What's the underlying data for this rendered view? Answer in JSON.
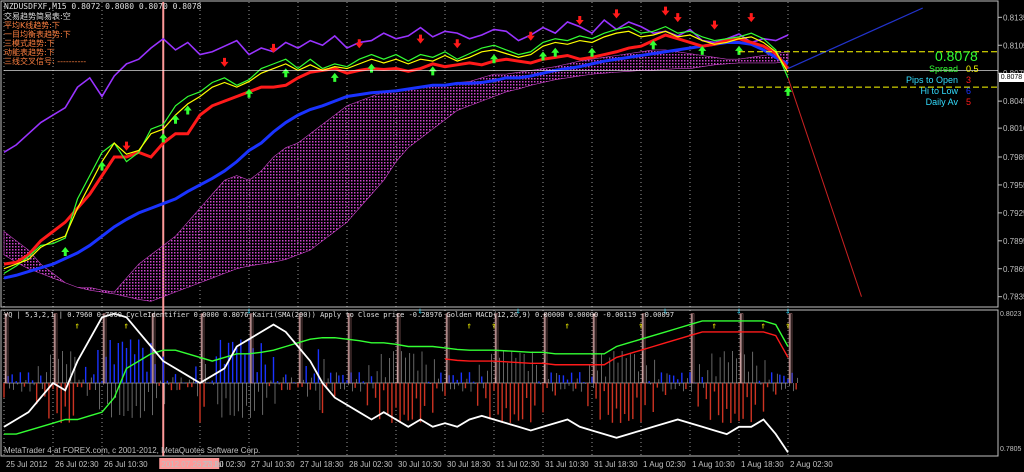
{
  "colors": {
    "background": "#000000",
    "axis": "#c0c0c0",
    "grid": "#ffffff",
    "purple": "#9933ff",
    "cloud": "#cc44cc",
    "blue": "#1a33ff",
    "red": "#ff1a1a",
    "green": "#33ff33",
    "yellow": "#ffff00",
    "cyan": "#33ddff",
    "orange": "#ff8040",
    "white": "#ffffff",
    "salmon": "#ff9999"
  },
  "main": {
    "header": "NZDUSDFXF,M15  0.8072 0.8080 0.8070 0.8078",
    "info_lines": [
      "交易趋势简易表:空",
      "平均K线趋势:下",
      "一目均衡表趋势:下",
      "三模式趋势:下",
      "动能表趋势:下",
      "三线交叉信号: ----------"
    ],
    "big_price": "0.8078",
    "stats": [
      {
        "label": "Spread",
        "value": "0.5",
        "label_color": "#33ff33",
        "value_color": "#ffff00"
      },
      {
        "label": "Pips to Open",
        "value": "3",
        "label_color": "#33ddff",
        "value_color": "#ff1a1a"
      },
      {
        "label": "Hi to Low",
        "value": "6",
        "label_color": "#33ddff",
        "value_color": "#1a33ff"
      },
      {
        "label": "Daily Av",
        "value": "5",
        "label_color": "#33ddff",
        "value_color": "#ff1a1a"
      }
    ],
    "current_price_tag": "0.8078"
  },
  "sub": {
    "header": "VQ | 5,3,2,1 | 0.7960 0.7960  CycleIdentifier 0.0000 0.8076  Kairi(SMA(200)) Apply to Close price -0.28976  Golden MACD(12,26,9) 0.00000 0.00000 -0.00119 -0.00097",
    "tag": "0.8023",
    "bottom_label": "0.7805"
  },
  "footer": "MetaTrader 4 at FOREX.com, c 2001-2012, MetaQuotes Software Corp.",
  "time_highlight": "2012.07.26 23:00",
  "chart_data": {
    "type": "line",
    "title": "NZDUSDFXF,M15",
    "ohlc_last": {
      "open": 0.8072,
      "high": 0.808,
      "low": 0.807,
      "close": 0.8078
    },
    "y_ticks": [
      "0.8135",
      "0.8105",
      "0.8075",
      "0.8045",
      "0.8016",
      "0.7985",
      "0.7955",
      "0.7925",
      "0.7895",
      "0.7865",
      "0.7835"
    ],
    "ylim": [
      0.7825,
      0.8145
    ],
    "x_ticks": [
      "25 Jul 2012",
      "26 Jul 02:30",
      "26 Jul 10:30",
      "2012.07.26 23:00",
      "27 Jul 02:30",
      "27 Jul 10:30",
      "27 Jul 18:30",
      "28 Jul 02:30",
      "30 Jul 10:30",
      "30 Jul 18:30",
      "31 Jul 02:30",
      "31 Jul 10:30",
      "31 Jul 18:30",
      "1 Aug 02:30",
      "1 Aug 10:30",
      "1 Aug 18:30",
      "2 Aug 02:30"
    ],
    "x_tick_index": [
      0,
      4,
      8,
      13,
      16,
      20,
      24,
      28,
      32,
      36,
      40,
      44,
      48,
      52,
      56,
      60,
      64
    ],
    "series": [
      {
        "color": "purple",
        "values": [
          0.799,
          0.7998,
          0.801,
          0.8022,
          0.803,
          0.8038,
          0.806,
          0.807,
          0.805,
          0.8072,
          0.8085,
          0.809,
          0.8102,
          0.8112,
          0.81,
          0.8108,
          0.8095,
          0.8098,
          0.8104,
          0.811,
          0.8095,
          0.8102,
          0.8098,
          0.8108,
          0.8102,
          0.811,
          0.8105,
          0.8115,
          0.8102,
          0.8108,
          0.811,
          0.8118,
          0.8112,
          0.8115,
          0.8124,
          0.8114,
          0.812,
          0.8118,
          0.8112,
          0.8116,
          0.8122,
          0.812,
          0.811,
          0.8116,
          0.8124,
          0.8118,
          0.813,
          0.8125,
          0.8118,
          0.8132,
          0.8122,
          0.813,
          0.8125,
          0.8118,
          0.812,
          0.8115,
          0.8122,
          0.811,
          0.8108,
          0.8112,
          0.8117,
          0.8108,
          0.8112,
          0.811,
          0.8116
        ]
      },
      {
        "color": "blue",
        "values": [
          0.7855,
          0.7858,
          0.7862,
          0.7866,
          0.787,
          0.7876,
          0.7882,
          0.789,
          0.79,
          0.791,
          0.7918,
          0.7925,
          0.793,
          0.7935,
          0.794,
          0.7948,
          0.7955,
          0.7962,
          0.797,
          0.798,
          0.7992,
          0.8,
          0.8012,
          0.8022,
          0.803,
          0.8036,
          0.804,
          0.8045,
          0.805,
          0.8052,
          0.8054,
          0.8055,
          0.8056,
          0.8058,
          0.806,
          0.8062,
          0.8062,
          0.8064,
          0.8064,
          0.8065,
          0.8067,
          0.807,
          0.807,
          0.8072,
          0.8075,
          0.8078,
          0.808,
          0.8082,
          0.8085,
          0.8088,
          0.809,
          0.8092,
          0.8094,
          0.8096,
          0.8098,
          0.81,
          0.8102,
          0.8104,
          0.8106,
          0.8108,
          0.8108,
          0.8106,
          0.81,
          0.8092,
          0.8085
        ]
      },
      {
        "color": "red",
        "values": [
          0.787,
          0.7872,
          0.788,
          0.7895,
          0.7905,
          0.7915,
          0.793,
          0.7945,
          0.7965,
          0.7985,
          0.7985,
          0.799,
          0.7985,
          0.8,
          0.801,
          0.801,
          0.803,
          0.804,
          0.8045,
          0.805,
          0.8055,
          0.806,
          0.806,
          0.8062,
          0.807,
          0.8076,
          0.8078,
          0.808,
          0.8075,
          0.8078,
          0.808,
          0.8079,
          0.808,
          0.8077,
          0.808,
          0.8085,
          0.8082,
          0.8084,
          0.8086,
          0.8084,
          0.8088,
          0.809,
          0.8088,
          0.8086,
          0.809,
          0.8092,
          0.8094,
          0.809,
          0.8092,
          0.8095,
          0.8098,
          0.8102,
          0.8104,
          0.811,
          0.8116,
          0.8112,
          0.8108,
          0.8104,
          0.8106,
          0.811,
          0.8112,
          0.8108,
          0.8104,
          0.8096,
          0.808
        ]
      },
      {
        "color": "green",
        "values": [
          0.786,
          0.7868,
          0.7878,
          0.789,
          0.7892,
          0.7898,
          0.794,
          0.7965,
          0.799,
          0.8,
          0.798,
          0.799,
          0.8015,
          0.802,
          0.804,
          0.805,
          0.8055,
          0.8065,
          0.807,
          0.8062,
          0.8068,
          0.808,
          0.8085,
          0.809,
          0.808,
          0.809,
          0.808,
          0.8085,
          0.8082,
          0.809,
          0.8095,
          0.809,
          0.8095,
          0.8088,
          0.8095,
          0.8092,
          0.8098,
          0.809,
          0.8096,
          0.8102,
          0.8105,
          0.81,
          0.8095,
          0.8098,
          0.8108,
          0.8112,
          0.811,
          0.8115,
          0.8112,
          0.8118,
          0.8122,
          0.8125,
          0.8118,
          0.812,
          0.8125,
          0.8118,
          0.812,
          0.8114,
          0.811,
          0.8112,
          0.8114,
          0.8118,
          0.8112,
          0.81,
          0.807
        ]
      },
      {
        "color": "yellow",
        "values": [
          0.7865,
          0.787,
          0.7875,
          0.7888,
          0.7895,
          0.79,
          0.793,
          0.7955,
          0.798,
          0.8,
          0.7988,
          0.7992,
          0.801,
          0.8015,
          0.803,
          0.8042,
          0.805,
          0.806,
          0.8065,
          0.806,
          0.8066,
          0.8075,
          0.808,
          0.8085,
          0.8078,
          0.8084,
          0.8078,
          0.8082,
          0.808,
          0.8085,
          0.809,
          0.8086,
          0.809,
          0.8085,
          0.809,
          0.8088,
          0.8094,
          0.8088,
          0.8092,
          0.8098,
          0.81,
          0.8096,
          0.8092,
          0.8095,
          0.8104,
          0.8108,
          0.8106,
          0.811,
          0.8108,
          0.8114,
          0.8118,
          0.812,
          0.8114,
          0.8116,
          0.812,
          0.8114,
          0.8116,
          0.811,
          0.8106,
          0.8108,
          0.8112,
          0.8114,
          0.8108,
          0.8098,
          0.8076
        ]
      }
    ],
    "cloud_upper": [
      0.7905,
      0.7895,
      0.7885,
      0.787,
      0.786,
      0.785,
      0.7845,
      0.7845,
      0.7842,
      0.784,
      0.7855,
      0.787,
      0.788,
      0.789,
      0.79,
      0.7915,
      0.793,
      0.7945,
      0.796,
      0.7965,
      0.796,
      0.797,
      0.7985,
      0.7995,
      0.8,
      0.801,
      0.802,
      0.803,
      0.804,
      0.8045,
      0.805,
      0.8055,
      0.8055,
      0.8058,
      0.806,
      0.8062,
      0.8062,
      0.8065,
      0.8066,
      0.807,
      0.8074,
      0.8074,
      0.8076,
      0.8078,
      0.808,
      0.8082,
      0.8085,
      0.8088,
      0.809,
      0.8092,
      0.8094,
      0.8096,
      0.8098,
      0.81,
      0.81,
      0.8098,
      0.8096,
      0.8094,
      0.8092,
      0.809,
      0.809,
      0.8092,
      0.8094,
      0.8096,
      0.8098
    ],
    "cloud_lower": [
      0.788,
      0.7872,
      0.7865,
      0.786,
      0.7855,
      0.785,
      0.7845,
      0.7842,
      0.784,
      0.7838,
      0.7835,
      0.7832,
      0.783,
      0.7835,
      0.784,
      0.7845,
      0.785,
      0.7855,
      0.786,
      0.7865,
      0.7868,
      0.787,
      0.7872,
      0.7875,
      0.788,
      0.7885,
      0.7895,
      0.7905,
      0.7915,
      0.793,
      0.7945,
      0.796,
      0.798,
      0.7995,
      0.8005,
      0.8015,
      0.8025,
      0.8035,
      0.804,
      0.8045,
      0.805,
      0.8055,
      0.8058,
      0.8062,
      0.8065,
      0.8068,
      0.807,
      0.8072,
      0.8074,
      0.8075,
      0.8076,
      0.8077,
      0.8078,
      0.8078,
      0.8079,
      0.808,
      0.808,
      0.8082,
      0.8084,
      0.8085,
      0.8086,
      0.8086,
      0.8086,
      0.8086,
      0.8088
    ],
    "up_arrows": [
      5,
      8,
      13,
      14,
      15,
      20,
      23,
      27,
      30,
      35,
      40,
      44,
      45,
      48,
      53,
      57,
      60,
      64
    ],
    "down_arrows": [
      10,
      18,
      22,
      29,
      34,
      37,
      43,
      47,
      50,
      54,
      55,
      58,
      61
    ],
    "blue_trend": {
      "from": [
        64,
        0.808
      ],
      "to": [
        75,
        0.8145
      ]
    },
    "red_drop": {
      "from": [
        64,
        0.807
      ],
      "to": [
        70,
        0.7835
      ]
    },
    "sub_ylim": [
      -1,
      1
    ],
    "sub_white": [
      -0.6,
      -0.5,
      -0.4,
      -0.2,
      0.0,
      -0.1,
      0.3,
      0.6,
      0.9,
      0.95,
      0.9,
      0.7,
      0.5,
      0.3,
      0.2,
      0.1,
      0.0,
      0.1,
      0.2,
      0.5,
      0.6,
      0.7,
      0.8,
      0.7,
      0.5,
      0.3,
      0.0,
      -0.2,
      -0.3,
      -0.4,
      -0.5,
      -0.4,
      -0.5,
      -0.6,
      -0.5,
      -0.6,
      -0.55,
      -0.6,
      -0.5,
      -0.45,
      -0.5,
      -0.55,
      -0.6,
      -0.65,
      -0.6,
      -0.55,
      -0.5,
      -0.6,
      -0.65,
      -0.7,
      -0.75,
      -0.7,
      -0.65,
      -0.6,
      -0.55,
      -0.5,
      -0.55,
      -0.6,
      -0.65,
      -0.7,
      -0.6,
      -0.6,
      -0.5,
      -0.7,
      -0.95
    ],
    "sub_step": [
      -0.7,
      -0.7,
      -0.65,
      -0.6,
      -0.55,
      -0.5,
      -0.5,
      -0.45,
      -0.4,
      -0.2,
      0.2,
      0.3,
      0.4,
      0.45,
      0.45,
      0.4,
      0.35,
      0.3,
      0.35,
      0.4,
      0.4,
      0.42,
      0.45,
      0.5,
      0.55,
      0.6,
      0.62,
      0.62,
      0.6,
      0.58,
      0.55,
      0.55,
      0.53,
      0.5,
      0.5,
      0.5,
      0.48,
      0.46,
      0.45,
      0.45,
      0.45,
      0.44,
      0.43,
      0.42,
      0.42,
      0.4,
      0.4,
      0.4,
      0.4,
      0.4,
      0.5,
      0.55,
      0.6,
      0.65,
      0.7,
      0.75,
      0.8,
      0.85,
      0.85,
      0.85,
      0.85,
      0.85,
      0.85,
      0.8,
      0.5
    ]
  }
}
